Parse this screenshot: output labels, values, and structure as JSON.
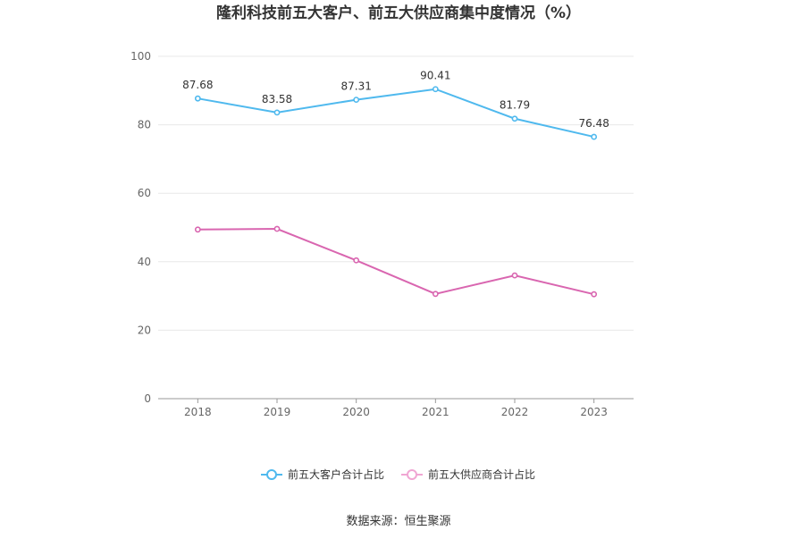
{
  "chart_data": {
    "type": "line",
    "title": "隆利科技前五大客户、前五大供应商集中度情况（%）",
    "xlabel": "",
    "ylabel": "",
    "categories": [
      "2018",
      "2019",
      "2020",
      "2021",
      "2022",
      "2023"
    ],
    "ylim": [
      0,
      100
    ],
    "yticks": [
      0,
      20,
      40,
      60,
      80,
      100
    ],
    "grid": true,
    "legend_position": "bottom",
    "series": [
      {
        "name": "前五大客户合计占比",
        "color": "#4fb9ee",
        "values": [
          87.68,
          83.58,
          87.31,
          90.41,
          81.79,
          76.48
        ],
        "labels": [
          "87.68",
          "83.58",
          "87.31",
          "90.41",
          "81.79",
          "76.48"
        ],
        "show_labels": true
      },
      {
        "name": "前五大供应商合计占比",
        "color": "#d966b0",
        "legend_color": "#f0a6d3",
        "values": [
          49.4,
          49.6,
          40.4,
          30.6,
          36.0,
          30.5
        ],
        "show_labels": false
      }
    ],
    "source": "数据来源：恒生聚源"
  }
}
